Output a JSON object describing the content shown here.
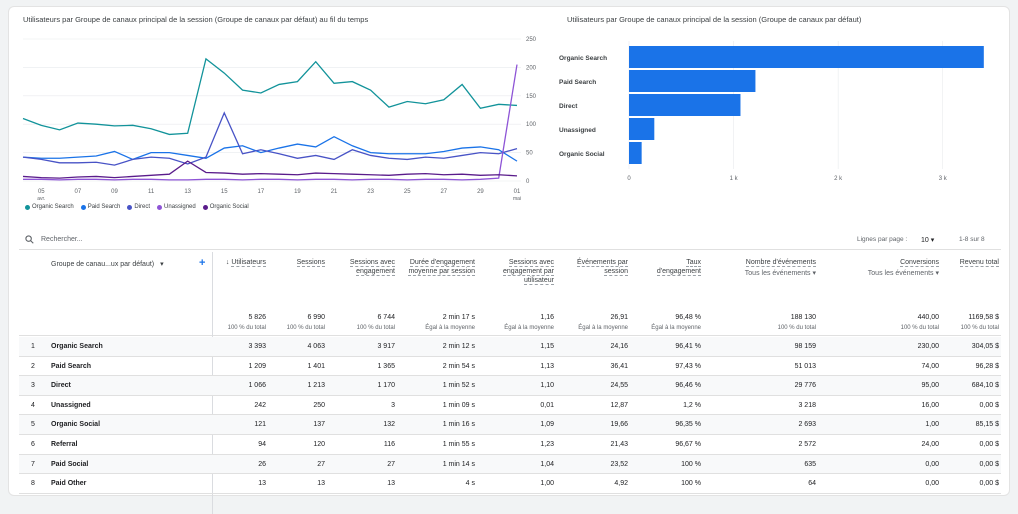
{
  "line_chart": {
    "title": "Utilisateurs par Groupe de canaux principal de la session (Groupe de canaux par défaut) au fil du temps",
    "y_ticks": [
      "250",
      "200",
      "150",
      "100",
      "50",
      "0"
    ],
    "x_ticks": [
      "05",
      "07",
      "09",
      "11",
      "13",
      "15",
      "17",
      "19",
      "21",
      "23",
      "25",
      "27",
      "29",
      "01"
    ],
    "x_sub": {
      "05": "avr.",
      "01": "mai"
    },
    "legend": [
      "Organic Search",
      "Paid Search",
      "Direct",
      "Unassigned",
      "Organic Social"
    ],
    "colors": [
      "#12939a",
      "#1a73e8",
      "#4853c6",
      "#8e54d6",
      "#5a1c8b"
    ]
  },
  "chart_data": [
    {
      "type": "line",
      "title": "Utilisateurs par Groupe de canaux principal de la session (Groupe de canaux par défaut) au fil du temps",
      "x": [
        "04",
        "05",
        "06",
        "07",
        "08",
        "09",
        "10",
        "11",
        "12",
        "13",
        "14",
        "15",
        "16",
        "17",
        "18",
        "19",
        "20",
        "21",
        "22",
        "23",
        "24",
        "25",
        "26",
        "27",
        "28",
        "29",
        "30",
        "01"
      ],
      "ylim": [
        0,
        250
      ],
      "series": [
        {
          "name": "Organic Search",
          "values": [
            110,
            98,
            90,
            102,
            100,
            97,
            98,
            92,
            82,
            84,
            215,
            190,
            160,
            155,
            170,
            175,
            210,
            172,
            175,
            160,
            130,
            140,
            136,
            143,
            170,
            128,
            135,
            133
          ]
        },
        {
          "name": "Paid Search",
          "values": [
            42,
            40,
            40,
            42,
            44,
            52,
            38,
            50,
            50,
            45,
            40,
            58,
            62,
            50,
            58,
            65,
            60,
            78,
            62,
            50,
            48,
            48,
            48,
            52,
            58,
            60,
            55,
            35
          ]
        },
        {
          "name": "Direct",
          "values": [
            42,
            38,
            32,
            32,
            33,
            28,
            38,
            42,
            40,
            30,
            42,
            120,
            48,
            55,
            48,
            40,
            45,
            38,
            55,
            45,
            40,
            38,
            42,
            40,
            45,
            50,
            48,
            57
          ]
        },
        {
          "name": "Unassigned",
          "values": [
            3,
            3,
            2,
            3,
            3,
            2,
            3,
            3,
            2,
            2,
            3,
            3,
            2,
            3,
            3,
            2,
            3,
            3,
            2,
            3,
            3,
            2,
            3,
            3,
            2,
            3,
            5,
            205
          ]
        },
        {
          "name": "Organic Social",
          "values": [
            8,
            6,
            5,
            7,
            8,
            6,
            8,
            10,
            12,
            35,
            15,
            14,
            12,
            13,
            12,
            11,
            14,
            13,
            12,
            11,
            10,
            12,
            13,
            11,
            12,
            10,
            11,
            9
          ]
        }
      ]
    },
    {
      "type": "bar",
      "title": "Utilisateurs par Groupe de canaux principal de la session (Groupe de canaux par défaut)",
      "categories": [
        "Organic Search",
        "Paid Search",
        "Direct",
        "Unassigned",
        "Organic Social"
      ],
      "values": [
        3393,
        1209,
        1066,
        242,
        121
      ],
      "x_ticks": [
        "0",
        "1 k",
        "2 k",
        "3 k"
      ],
      "xlim": [
        0,
        3500
      ],
      "color": "#1a73e8"
    }
  ],
  "bar_chart": {
    "title": "Utilisateurs par Groupe de canaux principal de la session (Groupe de canaux par défaut)"
  },
  "table": {
    "search_placeholder": "Rechercher...",
    "rows_per_page_label": "Lignes par page :",
    "rows_per_page_value": "10",
    "pagination": "1-8 sur 8",
    "dimension_header": "Groupe de canau...ux par défaut)",
    "columns": [
      {
        "label": "Utilisateurs",
        "total": "5 826",
        "sub": "100 % du total"
      },
      {
        "label": "Sessions",
        "total": "6 990",
        "sub": "100 % du total"
      },
      {
        "label": "Sessions avec engagement",
        "total": "6 744",
        "sub": "100 % du total"
      },
      {
        "label": "Durée d'engagement moyenne par session",
        "total": "2 min 17 s",
        "sub": "Égal à la moyenne"
      },
      {
        "label": "Sessions avec engagement par utilisateur",
        "total": "1,16",
        "sub": "Égal à la moyenne"
      },
      {
        "label": "Événements par session",
        "total": "26,91",
        "sub": "Égal à la moyenne"
      },
      {
        "label": "Taux d'engagement",
        "total": "96,48 %",
        "sub": "Égal à la moyenne"
      },
      {
        "label": "Nombre d'événements",
        "subtitle": "Tous les événements",
        "total": "188 130",
        "sub": "100 % du total"
      },
      {
        "label": "Conversions",
        "subtitle": "Tous les événements",
        "total": "440,00",
        "sub": "100 % du total"
      },
      {
        "label": "Revenu total",
        "total": "1169,58 $",
        "sub": "100 % du total"
      }
    ],
    "rows": [
      [
        "1",
        "Organic Search",
        "3 393",
        "4 063",
        "3 917",
        "2 min 12 s",
        "1,15",
        "24,16",
        "96,41 %",
        "98 159",
        "230,00",
        "304,05 $"
      ],
      [
        "2",
        "Paid Search",
        "1 209",
        "1 401",
        "1 365",
        "2 min 54 s",
        "1,13",
        "36,41",
        "97,43 %",
        "51 013",
        "74,00",
        "96,28 $"
      ],
      [
        "3",
        "Direct",
        "1 066",
        "1 213",
        "1 170",
        "1 min 52 s",
        "1,10",
        "24,55",
        "96,46 %",
        "29 776",
        "95,00",
        "684,10 $"
      ],
      [
        "4",
        "Unassigned",
        "242",
        "250",
        "3",
        "1 min 09 s",
        "0,01",
        "12,87",
        "1,2 %",
        "3 218",
        "16,00",
        "0,00 $"
      ],
      [
        "5",
        "Organic Social",
        "121",
        "137",
        "132",
        "1 min 16 s",
        "1,09",
        "19,66",
        "96,35 %",
        "2 693",
        "1,00",
        "85,15 $"
      ],
      [
        "6",
        "Referral",
        "94",
        "120",
        "116",
        "1 min 55 s",
        "1,23",
        "21,43",
        "96,67 %",
        "2 572",
        "24,00",
        "0,00 $"
      ],
      [
        "7",
        "Paid Social",
        "26",
        "27",
        "27",
        "1 min 14 s",
        "1,04",
        "23,52",
        "100 %",
        "635",
        "0,00",
        "0,00 $"
      ],
      [
        "8",
        "Paid Other",
        "13",
        "13",
        "13",
        "4 s",
        "1,00",
        "4,92",
        "100 %",
        "64",
        "0,00",
        "0,00 $"
      ]
    ]
  }
}
